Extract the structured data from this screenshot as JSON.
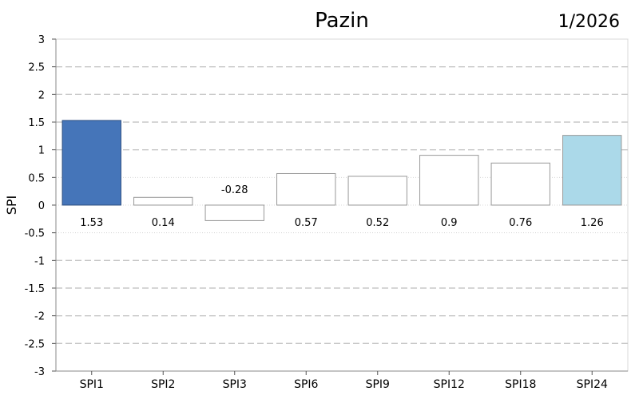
{
  "chart_data": {
    "type": "bar",
    "title": "Pazin",
    "date_label": "1/2026",
    "ylabel": "SPI",
    "xlabel": "",
    "ylim": [
      -3,
      3
    ],
    "yticks": [
      3,
      2.5,
      2,
      1.5,
      1,
      0.5,
      0,
      -0.5,
      -1,
      -1.5,
      -2,
      -2.5,
      -3
    ],
    "ytick_labels": [
      "3",
      "2.5",
      "2",
      "1.5",
      "1",
      "0.5",
      "0",
      "-0.5",
      "-1",
      "-1.5",
      "-2",
      "-2.5",
      "-3"
    ],
    "categories": [
      "SPI1",
      "SPI2",
      "SPI3",
      "SPI6",
      "SPI9",
      "SPI12",
      "SPI18",
      "SPI24"
    ],
    "values": [
      1.53,
      0.14,
      -0.28,
      0.57,
      0.52,
      0.9,
      0.76,
      1.26
    ],
    "value_labels": [
      "1.53",
      "0.14",
      "-0.28",
      "0.57",
      "0.52",
      "0.9",
      "0.76",
      "1.26"
    ],
    "bar_colors": [
      "#4575b9",
      "#ffffff",
      "#ffffff",
      "#ffffff",
      "#ffffff",
      "#ffffff",
      "#ffffff",
      "#abd9e9"
    ],
    "bar_stroke_colors": [
      "#2d4f80",
      "#999999",
      "#999999",
      "#999999",
      "#999999",
      "#999999",
      "#999999",
      "#999999"
    ],
    "grid": true,
    "legend": "none"
  }
}
